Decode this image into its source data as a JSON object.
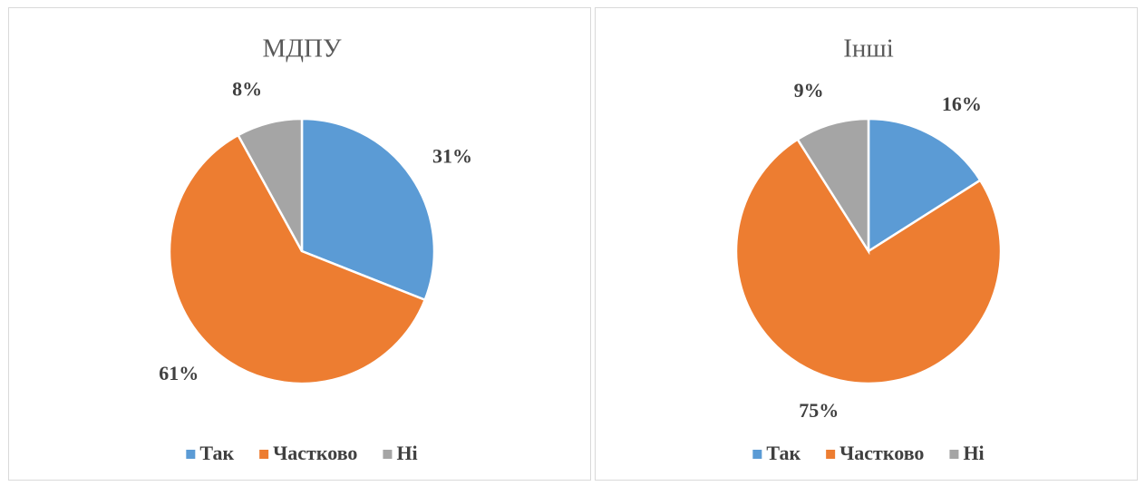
{
  "chart_data": [
    {
      "type": "pie",
      "title": "МДПУ",
      "categories": [
        "Так",
        "Частково",
        "Ні"
      ],
      "values": [
        31,
        61,
        8
      ],
      "value_labels": [
        "31%",
        "61%",
        "8%"
      ],
      "colors": [
        "#5b9bd5",
        "#ed7d31",
        "#a5a5a5"
      ],
      "legend": "bottom"
    },
    {
      "type": "pie",
      "title": "Інші",
      "categories": [
        "Так",
        "Частково",
        "Ні"
      ],
      "values": [
        16,
        75,
        9
      ],
      "value_labels": [
        "16%",
        "75%",
        "9%"
      ],
      "colors": [
        "#5b9bd5",
        "#ed7d31",
        "#a5a5a5"
      ],
      "legend": "bottom"
    }
  ]
}
